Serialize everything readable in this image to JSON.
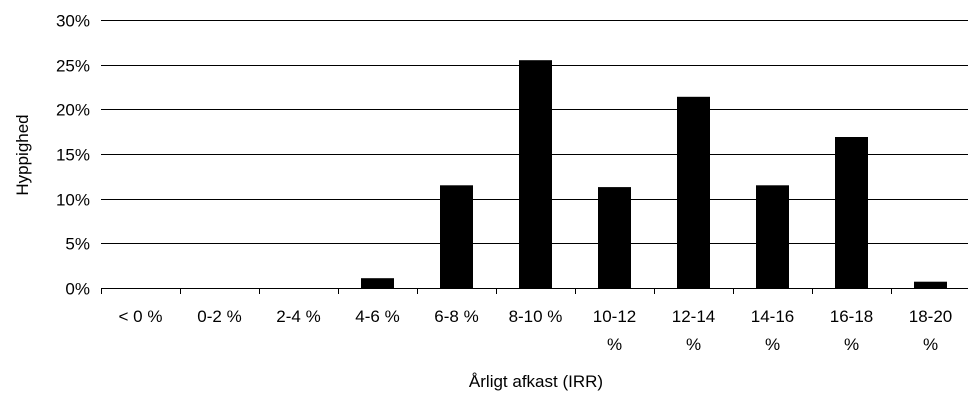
{
  "chart_data": {
    "type": "bar",
    "xlabel": "Årligt afkast (IRR)",
    "ylabel": "Hyppighed",
    "ylim": [
      0,
      30
    ],
    "ytick_labels": [
      "0%",
      "5%",
      "10%",
      "15%",
      "20%",
      "25%",
      "30%"
    ],
    "ytick_values": [
      0,
      5,
      10,
      15,
      20,
      25,
      30
    ],
    "categories": [
      "< 0 %",
      "0-2 %",
      "2-4 %",
      "4-6 %",
      "6-8 %",
      "8-10 %",
      "10-12 %",
      "12-14 %",
      "14-16 %",
      "16-18 %",
      "18-20 %"
    ],
    "category_lines": [
      [
        "< 0 %"
      ],
      [
        "0-2 %"
      ],
      [
        "2-4 %"
      ],
      [
        "4-6 %"
      ],
      [
        "6-8 %"
      ],
      [
        "8-10 %"
      ],
      [
        "10-12",
        "%"
      ],
      [
        "12-14",
        "%"
      ],
      [
        "14-16",
        "%"
      ],
      [
        "16-18",
        "%"
      ],
      [
        "18-20",
        "%"
      ]
    ],
    "values": [
      0,
      0,
      0,
      1.1,
      11.5,
      25.5,
      11.3,
      21.4,
      11.5,
      16.9,
      0.7
    ],
    "grid": true,
    "legend": "none",
    "bar_color": "#000000",
    "grid_color": "#000000"
  }
}
